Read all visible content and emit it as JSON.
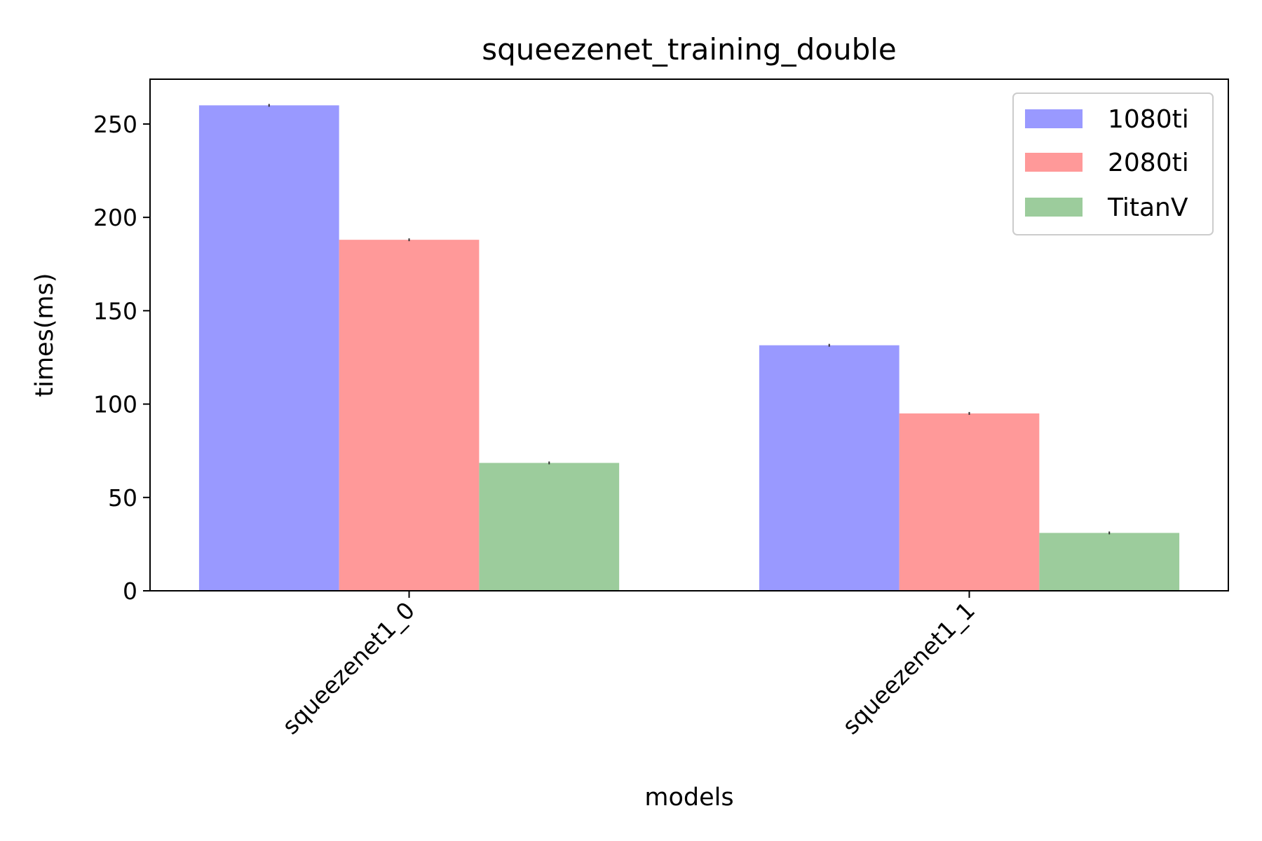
{
  "chart_data": {
    "type": "bar",
    "title": "squeezenet_training_double",
    "xlabel": "models",
    "ylabel": "times(ms)",
    "categories": [
      "squeezenet1_0",
      "squeezenet1_1"
    ],
    "series": [
      {
        "name": "1080ti",
        "color": "#9999ff",
        "values": [
          260.0,
          131.5
        ]
      },
      {
        "name": "2080ti",
        "color": "#ff9999",
        "values": [
          188.0,
          95.0
        ]
      },
      {
        "name": "TitanV",
        "color": "#9ccc9c",
        "values": [
          68.5,
          31.0
        ]
      }
    ],
    "ylim": [
      0,
      274
    ],
    "yticks": [
      0,
      50,
      100,
      150,
      200,
      250
    ],
    "xtick_rotation": -45,
    "grid": false,
    "legend_position": "top-right"
  }
}
